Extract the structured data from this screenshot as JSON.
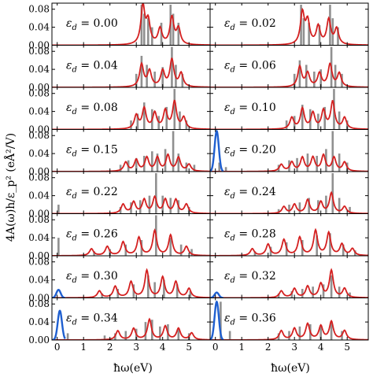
{
  "chart_data": {
    "type": "line",
    "layout": "grid of 16 panels, 8 rows by 2 columns, shared axes",
    "xlabel": "ħω(eV)",
    "ylabel": "4A(ω)h/ε_p² (eÅ²/V)",
    "xlim": [
      -0.2,
      5.8
    ],
    "ylim": [
      0,
      0.09
    ],
    "xticks": [
      0,
      1,
      2,
      3,
      4,
      5
    ],
    "yticks": [
      0.0,
      0.04,
      0.08
    ],
    "ytick_labels": [
      "0.00",
      "0.04",
      "0.08"
    ],
    "grid": false,
    "series_colors": {
      "broadened spectrum": "#d42020",
      "stick spectrum": "#909090",
      "low-energy peak": "#1f5fd0"
    },
    "panels": [
      {
        "label_prefix": "ε",
        "label_sub": "d",
        "label_value": "= 0.00",
        "red_peaks": [
          [
            3.25,
            0.085
          ],
          [
            3.45,
            0.05
          ],
          [
            3.9,
            0.035
          ],
          [
            4.35,
            0.06
          ],
          [
            4.6,
            0.035
          ]
        ],
        "sticks": [
          [
            3.2,
            0.09
          ],
          [
            3.3,
            0.07
          ],
          [
            3.45,
            0.06
          ],
          [
            3.6,
            0.04
          ],
          [
            3.95,
            0.05
          ],
          [
            4.3,
            0.09
          ],
          [
            4.4,
            0.07
          ],
          [
            4.6,
            0.05
          ]
        ],
        "blue_peak": null
      },
      {
        "label_prefix": "ε",
        "label_sub": "d",
        "label_value": "= 0.02",
        "red_peaks": [
          [
            3.3,
            0.07
          ],
          [
            3.5,
            0.05
          ],
          [
            3.9,
            0.04
          ],
          [
            4.3,
            0.055
          ],
          [
            4.6,
            0.035
          ]
        ],
        "sticks": [
          [
            3.25,
            0.09
          ],
          [
            3.35,
            0.06
          ],
          [
            3.55,
            0.05
          ],
          [
            3.95,
            0.045
          ],
          [
            4.35,
            0.09
          ],
          [
            4.45,
            0.06
          ],
          [
            4.65,
            0.04
          ]
        ],
        "blue_peak": null
      },
      {
        "label_prefix": "ε",
        "label_sub": "d",
        "label_value": "= 0.04",
        "red_peaks": [
          [
            3.2,
            0.05
          ],
          [
            3.5,
            0.035
          ],
          [
            4.0,
            0.035
          ],
          [
            4.35,
            0.06
          ],
          [
            4.7,
            0.03
          ]
        ],
        "sticks": [
          [
            3.0,
            0.03
          ],
          [
            3.2,
            0.07
          ],
          [
            3.4,
            0.05
          ],
          [
            3.7,
            0.035
          ],
          [
            4.0,
            0.045
          ],
          [
            4.35,
            0.09
          ],
          [
            4.5,
            0.05
          ],
          [
            4.75,
            0.03
          ]
        ],
        "blue_peak": null
      },
      {
        "label_prefix": "ε",
        "label_sub": "d",
        "label_value": "= 0.06",
        "red_peaks": [
          [
            3.2,
            0.045
          ],
          [
            3.5,
            0.03
          ],
          [
            3.95,
            0.03
          ],
          [
            4.35,
            0.05
          ],
          [
            4.7,
            0.03
          ]
        ],
        "sticks": [
          [
            3.0,
            0.03
          ],
          [
            3.2,
            0.06
          ],
          [
            3.45,
            0.05
          ],
          [
            3.75,
            0.035
          ],
          [
            4.0,
            0.04
          ],
          [
            4.4,
            0.09
          ],
          [
            4.55,
            0.05
          ],
          [
            4.8,
            0.03
          ]
        ],
        "blue_peak": null
      },
      {
        "label_prefix": "ε",
        "label_sub": "d",
        "label_value": "= 0.08",
        "red_peaks": [
          [
            3.0,
            0.03
          ],
          [
            3.3,
            0.045
          ],
          [
            3.7,
            0.035
          ],
          [
            4.1,
            0.04
          ],
          [
            4.45,
            0.06
          ],
          [
            4.8,
            0.025
          ]
        ],
        "sticks": [
          [
            2.8,
            0.02
          ],
          [
            3.05,
            0.035
          ],
          [
            3.3,
            0.06
          ],
          [
            3.6,
            0.045
          ],
          [
            3.85,
            0.03
          ],
          [
            4.15,
            0.05
          ],
          [
            4.45,
            0.09
          ],
          [
            4.65,
            0.04
          ],
          [
            4.9,
            0.02
          ]
        ],
        "blue_peak": null
      },
      {
        "label_prefix": "ε",
        "label_sub": "d",
        "label_value": "= 0.10",
        "red_peaks": [
          [
            2.9,
            0.025
          ],
          [
            3.3,
            0.045
          ],
          [
            3.7,
            0.035
          ],
          [
            4.1,
            0.04
          ],
          [
            4.45,
            0.06
          ],
          [
            4.9,
            0.025
          ]
        ],
        "sticks": [
          [
            2.7,
            0.02
          ],
          [
            3.0,
            0.03
          ],
          [
            3.3,
            0.055
          ],
          [
            3.6,
            0.045
          ],
          [
            3.9,
            0.035
          ],
          [
            4.15,
            0.05
          ],
          [
            4.5,
            0.09
          ],
          [
            4.7,
            0.04
          ],
          [
            5.0,
            0.02
          ]
        ],
        "blue_peak": null
      },
      {
        "label_prefix": "ε",
        "label_sub": "d",
        "label_value": "= 0.15",
        "red_peaks": [
          [
            2.6,
            0.02
          ],
          [
            3.0,
            0.025
          ],
          [
            3.4,
            0.03
          ],
          [
            3.8,
            0.03
          ],
          [
            4.2,
            0.035
          ],
          [
            4.6,
            0.03
          ],
          [
            5.0,
            0.015
          ]
        ],
        "sticks": [
          [
            2.4,
            0.015
          ],
          [
            2.7,
            0.025
          ],
          [
            3.0,
            0.03
          ],
          [
            3.3,
            0.035
          ],
          [
            3.6,
            0.045
          ],
          [
            3.8,
            0.04
          ],
          [
            4.1,
            0.05
          ],
          [
            4.4,
            0.09
          ],
          [
            4.6,
            0.04
          ],
          [
            4.9,
            0.02
          ],
          [
            5.2,
            0.015
          ]
        ],
        "blue_peak": null
      },
      {
        "label_prefix": "ε",
        "label_sub": "d",
        "label_value": "= 0.20",
        "red_peaks": [
          [
            2.5,
            0.015
          ],
          [
            2.9,
            0.02
          ],
          [
            3.3,
            0.03
          ],
          [
            3.7,
            0.03
          ],
          [
            4.1,
            0.035
          ],
          [
            4.5,
            0.03
          ],
          [
            4.9,
            0.02
          ]
        ],
        "sticks": [
          [
            0.15,
            0.02
          ],
          [
            0.4,
            0.01
          ],
          [
            2.4,
            0.015
          ],
          [
            2.8,
            0.025
          ],
          [
            3.1,
            0.03
          ],
          [
            3.5,
            0.04
          ],
          [
            3.85,
            0.035
          ],
          [
            4.2,
            0.05
          ],
          [
            4.45,
            0.09
          ],
          [
            4.7,
            0.04
          ],
          [
            5.0,
            0.02
          ]
        ],
        "blue_peak": [
          0.05,
          0.09
        ]
      },
      {
        "label_prefix": "ε",
        "label_sub": "d",
        "label_value": "= 0.22",
        "red_peaks": [
          [
            2.5,
            0.02
          ],
          [
            2.9,
            0.025
          ],
          [
            3.3,
            0.03
          ],
          [
            3.7,
            0.035
          ],
          [
            4.1,
            0.03
          ],
          [
            4.5,
            0.03
          ],
          [
            4.9,
            0.02
          ]
        ],
        "sticks": [
          [
            0.05,
            0.02
          ],
          [
            2.4,
            0.015
          ],
          [
            2.8,
            0.025
          ],
          [
            3.15,
            0.03
          ],
          [
            3.5,
            0.04
          ],
          [
            3.75,
            0.09
          ],
          [
            4.0,
            0.04
          ],
          [
            4.3,
            0.035
          ],
          [
            4.6,
            0.03
          ],
          [
            5.0,
            0.015
          ]
        ],
        "blue_peak": null
      },
      {
        "label_prefix": "ε",
        "label_sub": "d",
        "label_value": "= 0.24",
        "red_peaks": [
          [
            2.6,
            0.015
          ],
          [
            3.0,
            0.02
          ],
          [
            3.5,
            0.03
          ],
          [
            4.0,
            0.025
          ],
          [
            4.4,
            0.045
          ],
          [
            4.9,
            0.015
          ]
        ],
        "sticks": [
          [
            2.4,
            0.01
          ],
          [
            2.8,
            0.02
          ],
          [
            3.2,
            0.025
          ],
          [
            3.55,
            0.035
          ],
          [
            3.9,
            0.03
          ],
          [
            4.2,
            0.04
          ],
          [
            4.45,
            0.09
          ],
          [
            4.7,
            0.035
          ],
          [
            5.1,
            0.015
          ]
        ],
        "blue_peak": null
      },
      {
        "label_prefix": "ε",
        "label_sub": "d",
        "label_value": "= 0.26",
        "red_peaks": [
          [
            1.3,
            0.015
          ],
          [
            1.9,
            0.02
          ],
          [
            2.5,
            0.03
          ],
          [
            3.1,
            0.04
          ],
          [
            3.7,
            0.055
          ],
          [
            4.3,
            0.045
          ],
          [
            4.9,
            0.02
          ]
        ],
        "sticks": [
          [
            0.05,
            0.04
          ],
          [
            1.4,
            0.01
          ],
          [
            2.0,
            0.015
          ],
          [
            2.6,
            0.025
          ],
          [
            3.2,
            0.035
          ],
          [
            3.75,
            0.09
          ],
          [
            4.3,
            0.04
          ],
          [
            4.7,
            0.025
          ],
          [
            5.1,
            0.015
          ]
        ],
        "blue_peak": null
      },
      {
        "label_prefix": "ε",
        "label_sub": "d",
        "label_value": "= 0.28",
        "red_peaks": [
          [
            1.4,
            0.015
          ],
          [
            2.0,
            0.025
          ],
          [
            2.6,
            0.035
          ],
          [
            3.2,
            0.04
          ],
          [
            3.8,
            0.055
          ],
          [
            4.3,
            0.05
          ],
          [
            4.8,
            0.025
          ],
          [
            5.2,
            0.015
          ]
        ],
        "sticks": [
          [
            1.5,
            0.01
          ],
          [
            2.1,
            0.02
          ],
          [
            2.7,
            0.03
          ],
          [
            3.3,
            0.035
          ],
          [
            3.85,
            0.045
          ],
          [
            4.35,
            0.05
          ],
          [
            4.85,
            0.025
          ],
          [
            5.3,
            0.012
          ]
        ],
        "blue_peak": null
      },
      {
        "label_prefix": "ε",
        "label_sub": "d",
        "label_value": "= 0.30",
        "red_peaks": [
          [
            1.6,
            0.015
          ],
          [
            2.2,
            0.025
          ],
          [
            2.8,
            0.035
          ],
          [
            3.4,
            0.06
          ],
          [
            4.0,
            0.045
          ],
          [
            4.5,
            0.035
          ],
          [
            5.0,
            0.02
          ]
        ],
        "sticks": [
          [
            1.7,
            0.01
          ],
          [
            2.3,
            0.02
          ],
          [
            2.9,
            0.03
          ],
          [
            3.45,
            0.05
          ],
          [
            3.7,
            0.035
          ],
          [
            4.05,
            0.04
          ],
          [
            4.55,
            0.03
          ],
          [
            5.05,
            0.015
          ]
        ],
        "blue_peak": [
          0.05,
          0.018
        ]
      },
      {
        "label_prefix": "ε",
        "label_sub": "d",
        "label_value": "= 0.32",
        "red_peaks": [
          [
            2.5,
            0.015
          ],
          [
            3.0,
            0.02
          ],
          [
            3.5,
            0.025
          ],
          [
            4.0,
            0.03
          ],
          [
            4.4,
            0.06
          ],
          [
            4.9,
            0.02
          ]
        ],
        "sticks": [
          [
            2.4,
            0.01
          ],
          [
            2.9,
            0.015
          ],
          [
            3.3,
            0.02
          ],
          [
            3.7,
            0.025
          ],
          [
            4.1,
            0.03
          ],
          [
            4.4,
            0.05
          ],
          [
            4.7,
            0.025
          ],
          [
            5.1,
            0.012
          ]
        ],
        "blue_peak": [
          0.05,
          0.012
        ]
      },
      {
        "label_prefix": "ε",
        "label_sub": "d",
        "label_value": "= 0.34",
        "red_peaks": [
          [
            2.3,
            0.02
          ],
          [
            2.9,
            0.025
          ],
          [
            3.5,
            0.045
          ],
          [
            4.1,
            0.03
          ],
          [
            4.6,
            0.025
          ],
          [
            5.1,
            0.015
          ]
        ],
        "sticks": [
          [
            0.4,
            0.015
          ],
          [
            1.8,
            0.01
          ],
          [
            2.2,
            0.015
          ],
          [
            2.6,
            0.02
          ],
          [
            3.0,
            0.025
          ],
          [
            3.35,
            0.04
          ],
          [
            3.6,
            0.045
          ],
          [
            3.9,
            0.03
          ],
          [
            4.2,
            0.035
          ],
          [
            4.6,
            0.025
          ],
          [
            5.0,
            0.015
          ]
        ],
        "blue_peak": [
          0.1,
          0.065
        ]
      },
      {
        "label_prefix": "ε",
        "label_sub": "d",
        "label_value": "= 0.36",
        "red_peaks": [
          [
            2.5,
            0.02
          ],
          [
            3.0,
            0.025
          ],
          [
            3.5,
            0.035
          ],
          [
            4.0,
            0.03
          ],
          [
            4.4,
            0.04
          ],
          [
            4.9,
            0.02
          ]
        ],
        "sticks": [
          [
            0.2,
            0.085
          ],
          [
            0.55,
            0.02
          ],
          [
            2.4,
            0.015
          ],
          [
            2.8,
            0.02
          ],
          [
            3.2,
            0.03
          ],
          [
            3.6,
            0.035
          ],
          [
            4.0,
            0.03
          ],
          [
            4.4,
            0.04
          ],
          [
            4.8,
            0.02
          ]
        ],
        "blue_peak": [
          0.05,
          0.085
        ]
      }
    ]
  }
}
